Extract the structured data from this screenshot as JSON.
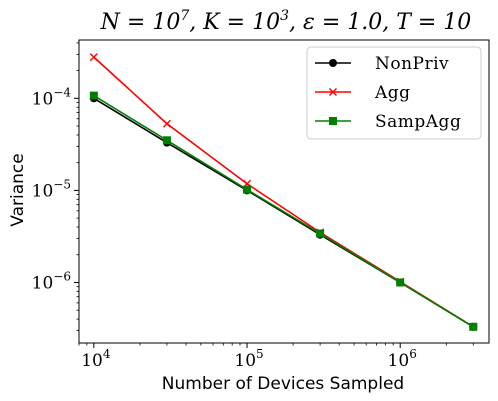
{
  "chart_data": {
    "type": "line",
    "title": "N = 10^7, K = 10^3, ε = 1.0, T = 10",
    "title_parts": [
      "N = 10",
      "7",
      ", K = 10",
      "3",
      ", ε = 1.0, T = 10"
    ],
    "xlabel": "Number of Devices Sampled",
    "ylabel": "Variance",
    "xscale": "log",
    "yscale": "log",
    "xlim": [
      8000,
      3800000
    ],
    "ylim": [
      2.2e-07,
      0.00043
    ],
    "x": [
      10000,
      30000,
      100000,
      300000,
      1000000,
      3000000
    ],
    "x_ticks": [
      {
        "value": 10000,
        "base": "10",
        "exp": "4"
      },
      {
        "value": 100000,
        "base": "10",
        "exp": "5"
      },
      {
        "value": 1000000,
        "base": "10",
        "exp": "6"
      }
    ],
    "y_ticks": [
      {
        "value": 1e-06,
        "base": "10",
        "exp": "−6"
      },
      {
        "value": 1e-05,
        "base": "10",
        "exp": "−5"
      },
      {
        "value": 0.0001,
        "base": "10",
        "exp": "−4"
      }
    ],
    "series": [
      {
        "name": "NonPriv",
        "color": "#000000",
        "marker": "circle",
        "values": [
          0.0001,
          3.3e-05,
          1e-05,
          3.3e-06,
          1e-06,
          3.3e-07
        ]
      },
      {
        "name": "Agg",
        "color": "#ff0000",
        "marker": "x",
        "values": [
          0.00028,
          5.3e-05,
          1.18e-05,
          3.5e-06,
          1.02e-06,
          3.3e-07
        ]
      },
      {
        "name": "SampAgg",
        "color": "#008000",
        "marker": "square",
        "values": [
          0.000107,
          3.5e-05,
          1.02e-05,
          3.4e-06,
          1e-06,
          3.3e-07
        ]
      }
    ],
    "grid": false,
    "legend_position": "top-right"
  }
}
